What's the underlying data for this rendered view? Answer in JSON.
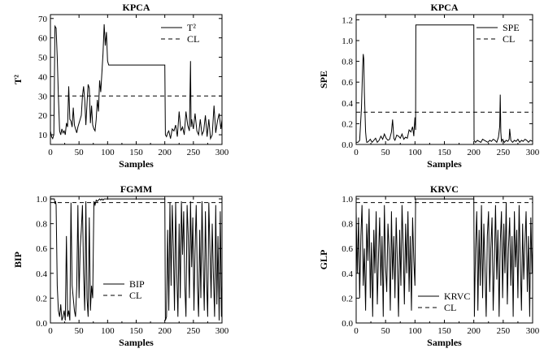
{
  "chart_data": [
    {
      "id": "kpca_t2",
      "type": "line",
      "title": "KPCA",
      "xlabel": "Samples",
      "ylabel": "T²",
      "xlim": [
        0,
        300
      ],
      "ylim": [
        5,
        72
      ],
      "xticks": [
        0,
        50,
        100,
        150,
        200,
        250,
        300
      ],
      "yticks": [
        10,
        20,
        30,
        40,
        50,
        60,
        70
      ],
      "legend_position": "top-right",
      "series": [
        {
          "name": "T²",
          "x": [
            0,
            2,
            4,
            6,
            8,
            10,
            12,
            14,
            16,
            18,
            20,
            22,
            24,
            26,
            28,
            30,
            32,
            34,
            36,
            38,
            40,
            42,
            44,
            46,
            48,
            50,
            52,
            54,
            56,
            58,
            60,
            62,
            64,
            66,
            68,
            70,
            72,
            74,
            76,
            78,
            80,
            82,
            84,
            86,
            88,
            90,
            92,
            94,
            96,
            98,
            100,
            102,
            104,
            200,
            201,
            203,
            205,
            207,
            210,
            213,
            216,
            219,
            222,
            225,
            228,
            231,
            234,
            237,
            240,
            243,
            245,
            246,
            247,
            250,
            253,
            256,
            259,
            262,
            265,
            268,
            271,
            274,
            277,
            280,
            283,
            286,
            289,
            292,
            295,
            298,
            300
          ],
          "y": [
            12,
            9,
            8,
            10,
            66,
            65,
            50,
            30,
            12,
            10,
            13,
            11,
            12,
            10,
            16,
            14,
            35,
            18,
            17,
            14,
            24,
            15,
            13,
            11,
            14,
            16,
            18,
            20,
            30,
            35,
            28,
            15,
            26,
            36,
            34,
            16,
            25,
            15,
            13,
            12,
            18,
            28,
            22,
            38,
            32,
            42,
            52,
            67,
            56,
            63,
            48,
            46,
            46,
            46,
            10,
            9,
            11,
            12,
            8,
            13,
            12,
            15,
            9,
            22,
            12,
            14,
            10,
            22,
            15,
            12,
            48,
            14,
            18,
            13,
            21,
            12,
            10,
            18,
            10,
            12,
            20,
            9,
            18,
            8,
            10,
            25,
            11,
            17,
            21,
            13,
            18
          ]
        },
        {
          "name": "CL",
          "x": [
            0,
            300
          ],
          "y": [
            30,
            30
          ]
        }
      ]
    },
    {
      "id": "kpca_spe",
      "type": "line",
      "title": "KPCA",
      "xlabel": "Samples",
      "ylabel": "SPE",
      "xlim": [
        0,
        300
      ],
      "ylim": [
        0,
        1.25
      ],
      "xticks": [
        0,
        50,
        100,
        150,
        200,
        250,
        300
      ],
      "yticks": [
        0.0,
        0.2,
        0.4,
        0.6,
        0.8,
        1.0,
        1.2
      ],
      "legend_position": "top-right",
      "series": [
        {
          "name": "SPE",
          "x": [
            0,
            3,
            6,
            9,
            11,
            12,
            13,
            14,
            15,
            16,
            17,
            18,
            19,
            21,
            24,
            27,
            30,
            33,
            36,
            39,
            42,
            45,
            48,
            51,
            54,
            57,
            60,
            62,
            63,
            64,
            66,
            69,
            72,
            75,
            78,
            81,
            84,
            87,
            90,
            93,
            96,
            98,
            99,
            100,
            101,
            101.5,
            200,
            200.5,
            203,
            206,
            209,
            212,
            215,
            218,
            221,
            224,
            227,
            230,
            233,
            236,
            239,
            242,
            244,
            245,
            246,
            247,
            249,
            252,
            255,
            258,
            260,
            261,
            263,
            266,
            269,
            272,
            275,
            278,
            281,
            284,
            287,
            290,
            293,
            296,
            300
          ],
          "y": [
            0.02,
            0.02,
            0.04,
            0.35,
            0.75,
            0.87,
            0.82,
            0.5,
            0.3,
            0.12,
            0.06,
            0.02,
            0.02,
            0.03,
            0.05,
            0.02,
            0.04,
            0.06,
            0.02,
            0.04,
            0.08,
            0.05,
            0.1,
            0.06,
            0.04,
            0.05,
            0.12,
            0.24,
            0.15,
            0.06,
            0.04,
            0.09,
            0.08,
            0.06,
            0.1,
            0.05,
            0.07,
            0.06,
            0.14,
            0.12,
            0.17,
            0.08,
            0.18,
            0.26,
            0.14,
            1.15,
            1.15,
            0.04,
            0.02,
            0.04,
            0.03,
            0.02,
            0.05,
            0.04,
            0.03,
            0.02,
            0.04,
            0.03,
            0.05,
            0.04,
            0.02,
            0.07,
            0.17,
            0.48,
            0.12,
            0.03,
            0.05,
            0.02,
            0.04,
            0.03,
            0.05,
            0.15,
            0.04,
            0.02,
            0.04,
            0.03,
            0.05,
            0.02,
            0.04,
            0.03,
            0.05,
            0.04,
            0.02,
            0.04,
            0.03
          ]
        },
        {
          "name": "CL",
          "x": [
            0,
            300
          ],
          "y": [
            0.31,
            0.31
          ]
        }
      ]
    },
    {
      "id": "fgmm_bip",
      "type": "line",
      "title": "FGMM",
      "xlabel": "Samples",
      "ylabel": "BIP",
      "xlim": [
        0,
        300
      ],
      "ylim": [
        0,
        1.02
      ],
      "xticks": [
        0,
        50,
        100,
        150,
        200,
        250,
        300
      ],
      "yticks": [
        0.0,
        0.2,
        0.4,
        0.6,
        0.8,
        1.0
      ],
      "legend_position": "bottom-center",
      "series": [
        {
          "name": "BIP",
          "x": [
            0,
            5,
            7,
            8,
            9,
            10,
            12,
            14,
            16,
            18,
            20,
            22,
            24,
            26,
            28,
            30,
            32,
            34,
            36,
            38,
            40,
            42,
            44,
            46,
            48,
            50,
            52,
            54,
            56,
            58,
            60,
            62,
            64,
            66,
            68,
            70,
            72,
            74,
            76,
            78,
            80,
            82,
            84,
            86,
            88,
            90,
            92,
            94,
            96,
            98,
            100,
            200,
            201,
            203,
            205,
            207,
            209,
            211,
            213,
            215,
            217,
            219,
            221,
            223,
            225,
            227,
            229,
            231,
            233,
            235,
            237,
            239,
            241,
            243,
            245,
            247,
            249,
            251,
            253,
            255,
            257,
            259,
            261,
            263,
            265,
            267,
            269,
            271,
            273,
            275,
            277,
            279,
            281,
            283,
            285,
            287,
            289,
            291,
            293,
            295,
            297,
            299,
            300
          ],
          "y": [
            1.0,
            1.0,
            1.0,
            0.96,
            0.98,
            0.95,
            0.3,
            0.1,
            0.05,
            0.15,
            0.02,
            0.05,
            0.1,
            0.02,
            0.7,
            0.05,
            0.1,
            0.02,
            0.97,
            0.3,
            0.2,
            0.1,
            0.05,
            0.3,
            0.95,
            0.2,
            0.6,
            0.75,
            0.95,
            0.4,
            0.1,
            0.98,
            0.2,
            0.05,
            0.85,
            0.1,
            0.3,
            0.2,
            0.98,
            0.95,
            0.99,
            0.98,
            0.99,
            1.0,
            0.99,
            1.0,
            0.99,
            1.0,
            1.0,
            1.0,
            1.0,
            1.0,
            0.02,
            0.05,
            0.75,
            0.1,
            0.97,
            0.3,
            0.95,
            0.6,
            0.1,
            0.97,
            0.4,
            0.05,
            0.8,
            0.2,
            0.98,
            0.55,
            0.9,
            0.3,
            0.05,
            0.95,
            0.7,
            0.2,
            0.98,
            0.45,
            0.85,
            0.1,
            0.6,
            0.95,
            0.3,
            0.05,
            0.75,
            0.2,
            0.98,
            0.5,
            0.1,
            0.9,
            0.35,
            0.05,
            0.97,
            0.6,
            0.2,
            0.8,
            0.4,
            0.05,
            0.95,
            0.15,
            0.7,
            0.02,
            0.9,
            0.05,
            0.3
          ]
        },
        {
          "name": "CL",
          "x": [
            0,
            300
          ],
          "y": [
            0.97,
            0.97
          ]
        }
      ]
    },
    {
      "id": "krvc_glp",
      "type": "line",
      "title": "KRVC",
      "xlabel": "Samples",
      "ylabel": "GLP",
      "xlim": [
        0,
        300
      ],
      "ylim": [
        0,
        1.02
      ],
      "xticks": [
        0,
        50,
        100,
        150,
        200,
        250,
        300
      ],
      "yticks": [
        0.0,
        0.2,
        0.4,
        0.6,
        0.8,
        1.0
      ],
      "legend_position": "bottom-center",
      "series": [
        {
          "name": "KRVC",
          "x": [
            0,
            2,
            4,
            6,
            8,
            10,
            12,
            14,
            16,
            18,
            20,
            22,
            24,
            26,
            28,
            30,
            32,
            34,
            36,
            38,
            40,
            42,
            44,
            46,
            48,
            50,
            52,
            54,
            56,
            58,
            60,
            62,
            64,
            66,
            68,
            70,
            72,
            74,
            76,
            78,
            80,
            82,
            84,
            86,
            88,
            90,
            92,
            94,
            96,
            98,
            100,
            101,
            200,
            201,
            203,
            205,
            207,
            209,
            211,
            213,
            215,
            217,
            219,
            221,
            223,
            225,
            227,
            229,
            231,
            233,
            235,
            237,
            239,
            241,
            243,
            245,
            247,
            249,
            251,
            253,
            255,
            257,
            259,
            261,
            263,
            265,
            267,
            269,
            271,
            273,
            275,
            277,
            279,
            281,
            283,
            285,
            287,
            289,
            291,
            293,
            295,
            297,
            299,
            300
          ],
          "y": [
            0.9,
            0.4,
            0.85,
            0.2,
            0.7,
            0.95,
            0.3,
            0.6,
            0.1,
            0.8,
            0.5,
            0.92,
            0.2,
            0.65,
            0.05,
            0.75,
            0.4,
            0.9,
            0.15,
            0.55,
            0.85,
            0.3,
            0.7,
            0.05,
            0.95,
            0.45,
            0.25,
            0.8,
            0.6,
            0.1,
            0.9,
            0.35,
            0.7,
            0.2,
            0.85,
            0.5,
            0.05,
            0.75,
            0.3,
            0.95,
            0.6,
            0.15,
            0.8,
            0.4,
            0.9,
            0.25,
            0.7,
            0.1,
            0.85,
            0.5,
            0.3,
            1.0,
            1.0,
            0.05,
            0.6,
            0.9,
            0.1,
            0.75,
            0.3,
            0.95,
            0.2,
            0.8,
            0.45,
            0.05,
            0.7,
            0.9,
            0.25,
            0.6,
            0.85,
            0.1,
            0.5,
            0.95,
            0.35,
            0.75,
            0.05,
            0.65,
            0.9,
            0.2,
            0.8,
            0.4,
            0.97,
            0.15,
            0.6,
            0.85,
            0.3,
            0.7,
            0.05,
            0.9,
            0.45,
            0.75,
            0.2,
            0.95,
            0.5,
            0.1,
            0.8,
            0.35,
            0.65,
            0.9,
            0.25,
            0.7,
            0.05,
            0.85,
            0.4,
            0.6
          ]
        },
        {
          "name": "CL",
          "x": [
            0,
            300
          ],
          "y": [
            0.97,
            0.97
          ]
        }
      ]
    }
  ]
}
